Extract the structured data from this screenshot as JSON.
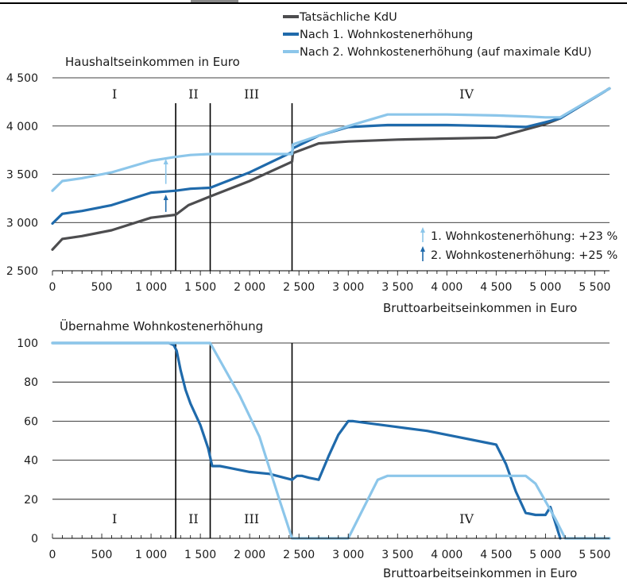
{
  "chart_data": [
    {
      "type": "line",
      "title": "",
      "ylabel": "Haushaltseinkommen in Euro",
      "xlabel": "Bruttoarbeitseinkommen in Euro",
      "xlim": [
        0,
        5650
      ],
      "ylim": [
        2500,
        4500
      ],
      "xticks": [
        0,
        500,
        1000,
        1500,
        2000,
        2500,
        3000,
        3500,
        4000,
        4500,
        5000,
        5500
      ],
      "xtick_labels": [
        "0",
        "500",
        "1 000",
        "1 500",
        "2 000",
        "2 500",
        "3 000",
        "3 500",
        "4 000",
        "4 500",
        "5 000",
        "5 500"
      ],
      "yticks": [
        2500,
        3000,
        3500,
        4000,
        4500
      ],
      "ytick_labels": [
        "2 500",
        "3 000",
        "3 500",
        "4 000",
        "4 500"
      ],
      "grid": "horizontal",
      "legend_position": "top",
      "vlines": [
        1250,
        1600,
        2430
      ],
      "regions": [
        {
          "label": "I",
          "x": 630
        },
        {
          "label": "II",
          "x": 1430
        },
        {
          "label": "III",
          "x": 2020
        },
        {
          "label": "IV",
          "x": 4200
        }
      ],
      "series": [
        {
          "name": "Tatsächliche KdU",
          "color": "#4d4d4f",
          "x": [
            0,
            100,
            300,
            600,
            1000,
            1250,
            1380,
            1600,
            2000,
            2430,
            2440,
            2700,
            3000,
            3500,
            4000,
            4500,
            5000,
            5150,
            5650
          ],
          "y": [
            2720,
            2830,
            2860,
            2920,
            3050,
            3080,
            3180,
            3270,
            3430,
            3630,
            3720,
            3820,
            3840,
            3860,
            3870,
            3880,
            4020,
            4080,
            4390
          ]
        },
        {
          "name": "Nach 1. Wohnkostenerhöhung",
          "color": "#1f6aab",
          "x": [
            0,
            100,
            300,
            600,
            1000,
            1250,
            1400,
            1600,
            1700,
            2000,
            2430,
            2440,
            2700,
            3000,
            3400,
            4000,
            4500,
            4800,
            5000,
            5150,
            5650
          ],
          "y": [
            2990,
            3090,
            3120,
            3180,
            3310,
            3330,
            3350,
            3360,
            3400,
            3520,
            3730,
            3770,
            3900,
            3990,
            4010,
            4010,
            4000,
            3990,
            4040,
            4080,
            4390
          ]
        },
        {
          "name": "Nach 2. Wohnkostenerhöhung (auf maximale KdU)",
          "color": "#8cc6ea",
          "x": [
            0,
            100,
            300,
            600,
            1000,
            1250,
            1400,
            1600,
            2000,
            2430,
            2440,
            2700,
            3000,
            3400,
            4000,
            4500,
            4800,
            5000,
            5150,
            5650
          ],
          "y": [
            3330,
            3430,
            3460,
            3520,
            3640,
            3680,
            3700,
            3710,
            3710,
            3710,
            3810,
            3900,
            4000,
            4120,
            4120,
            4110,
            4100,
            4090,
            4090,
            4390
          ]
        }
      ],
      "annotations": [
        {
          "text": "1. Wohnkostenerhöhung: +23 %",
          "arrow_color": "#8cc6ea"
        },
        {
          "text": "2. Wohnkostenerhöhung: +25 %",
          "arrow_color": "#1f6aab"
        }
      ],
      "arrows": [
        {
          "x": 1150,
          "y_from": 3400,
          "y_to": 3660,
          "color": "#8cc6ea"
        },
        {
          "x": 1150,
          "y_from": 3110,
          "y_to": 3290,
          "color": "#1f6aab"
        }
      ]
    },
    {
      "type": "line",
      "title": "",
      "ylabel": "Übernahme Wohnkostenerhöhung",
      "xlabel": "Bruttoarbeitseinkommen in Euro",
      "xlim": [
        0,
        5650
      ],
      "ylim": [
        0,
        100
      ],
      "xticks": [
        0,
        500,
        1000,
        1500,
        2000,
        2500,
        3000,
        3500,
        4000,
        4500,
        5000,
        5500
      ],
      "xtick_labels": [
        "0",
        "500",
        "1 000",
        "1 500",
        "2 000",
        "2 500",
        "3 000",
        "3 500",
        "4 000",
        "4 500",
        "5 000",
        "5 500"
      ],
      "yticks": [
        0,
        20,
        40,
        60,
        80,
        100
      ],
      "ytick_labels": [
        "0",
        "20",
        "40",
        "60",
        "80",
        "100"
      ],
      "grid": "horizontal",
      "vlines": [
        1250,
        1600,
        2430
      ],
      "regions": [
        {
          "label": "I",
          "x": 630
        },
        {
          "label": "II",
          "x": 1430
        },
        {
          "label": "III",
          "x": 2020
        },
        {
          "label": "IV",
          "x": 4200
        }
      ],
      "series": [
        {
          "name": "Nach 1. Wohnkostenerhöhung",
          "color": "#1f6aab",
          "x": [
            0,
            1180,
            1230,
            1260,
            1300,
            1350,
            1400,
            1500,
            1580,
            1620,
            1700,
            1800,
            2000,
            2200,
            2350,
            2430,
            2480,
            2530,
            2600,
            2700,
            2800,
            2900,
            3000,
            3050,
            3200,
            3500,
            3800,
            4100,
            4400,
            4500,
            4600,
            4700,
            4800,
            4900,
            5000,
            5050,
            5100,
            5150
          ],
          "y": [
            100,
            100,
            99,
            96,
            86,
            76,
            69,
            58,
            46,
            37,
            37,
            36,
            34,
            33,
            31,
            30,
            32,
            32,
            31,
            30,
            42,
            53,
            60,
            60,
            59,
            57,
            55,
            52,
            49,
            48,
            38,
            24,
            13,
            12,
            12,
            16,
            8,
            0
          ]
        },
        {
          "name": "Nach 2. Wohnkostenerhöhung (auf maximale KdU)",
          "color": "#8cc6ea",
          "x": [
            0,
            1500,
            1600,
            1700,
            1900,
            2100,
            2300,
            2430,
            2500,
            2900,
            3000,
            3200,
            3300,
            3400,
            4500,
            4700,
            4800,
            4900,
            5000,
            5100,
            5200,
            5650
          ],
          "y": [
            100,
            100,
            100,
            91,
            73,
            52,
            20,
            0,
            0,
            0,
            0,
            20,
            30,
            32,
            32,
            32,
            32,
            28,
            19,
            10,
            0,
            0
          ]
        }
      ]
    }
  ],
  "legend": {
    "items": [
      {
        "label": "Tatsächliche KdU",
        "color": "#4d4d4f"
      },
      {
        "label": "Nach 1. Wohnkostenerhöhung",
        "color": "#1f6aab"
      },
      {
        "label": "Nach 2. Wohnkostenerhöhung (auf maximale KdU)",
        "color": "#8cc6ea"
      }
    ]
  }
}
